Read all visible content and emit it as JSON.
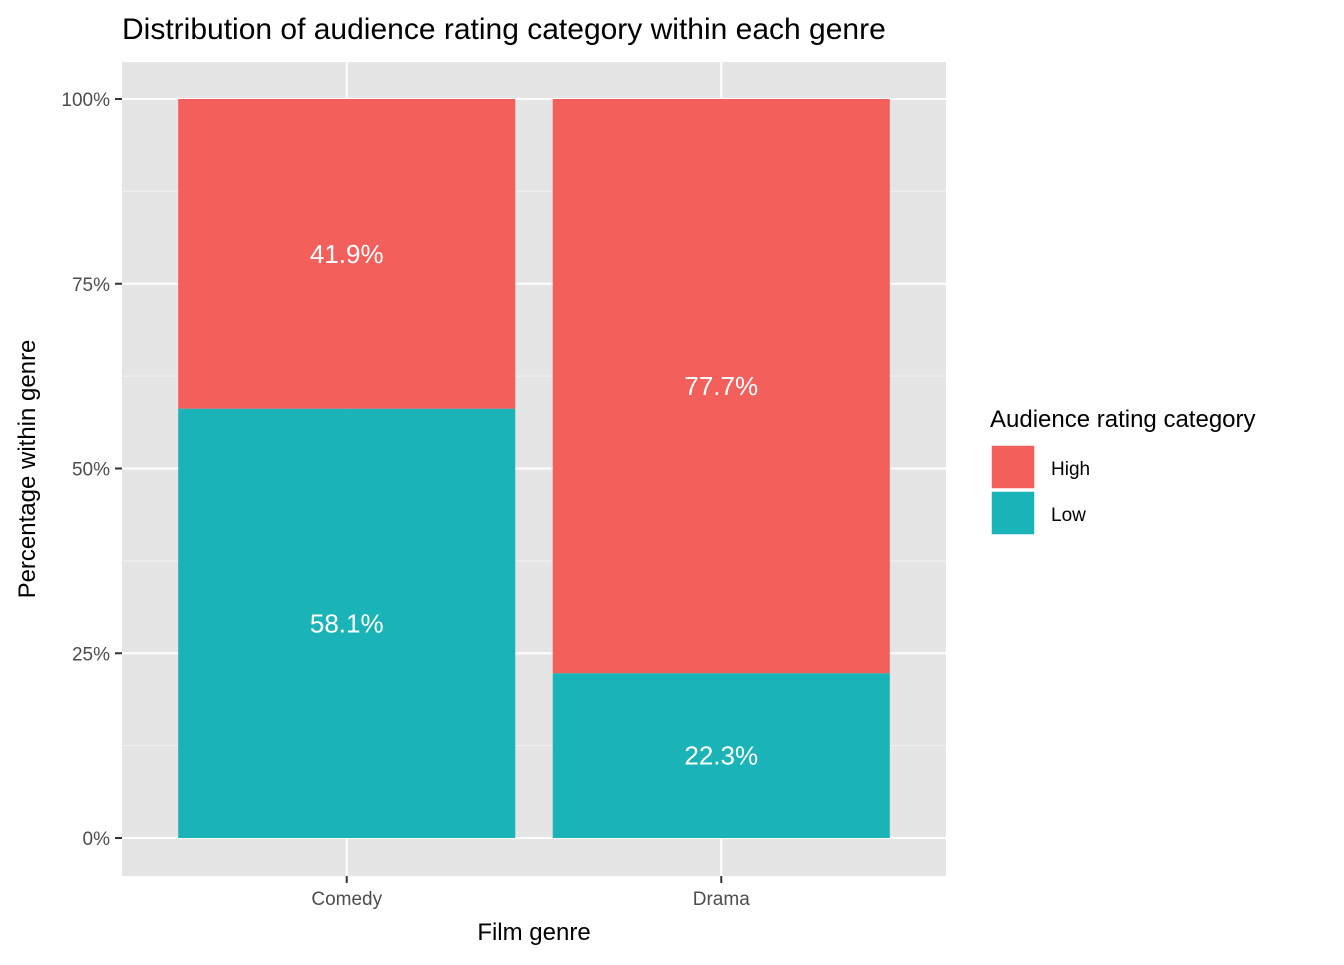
{
  "chart_data": {
    "type": "bar",
    "stacked": true,
    "title": "Distribution of audience rating category within each genre",
    "xlabel": "Film genre",
    "ylabel": "Percentage within genre",
    "categories": [
      "Comedy",
      "Drama"
    ],
    "series": [
      {
        "name": "High",
        "values": [
          41.9,
          77.7
        ],
        "labels": [
          "41.9%",
          "77.7%"
        ],
        "color": "#F35F5A"
      },
      {
        "name": "Low",
        "values": [
          58.1,
          22.3
        ],
        "labels": [
          "58.1%",
          "22.3%"
        ],
        "color": "#1AB3B7"
      }
    ],
    "ylim": [
      0,
      100
    ],
    "yticks": [
      0,
      25,
      50,
      75,
      100
    ],
    "ytick_labels": [
      "0%",
      "25%",
      "50%",
      "75%",
      "100%"
    ],
    "grid": true,
    "legend": {
      "title": "Audience rating category",
      "placement": "right",
      "entries": [
        "High",
        "Low"
      ]
    }
  }
}
